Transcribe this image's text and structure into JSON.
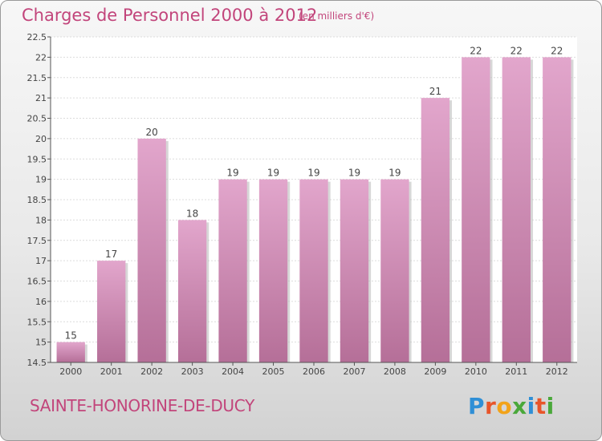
{
  "header": {
    "title": "Charges de Personnel 2000 à 2012",
    "subtitle": "(en milliers d'€)"
  },
  "footer": {
    "commune": "SAINTE-HONORINE-DE-DUCY",
    "logo": "Proxiti",
    "logo_letters": [
      {
        "ch": "P",
        "color": "#2f8fd6"
      },
      {
        "ch": "r",
        "color": "#e8552a"
      },
      {
        "ch": "o",
        "color": "#f2a31a"
      },
      {
        "ch": "x",
        "color": "#4aa83a"
      },
      {
        "ch": "i",
        "color": "#2f8fd6"
      },
      {
        "ch": "t",
        "color": "#e8552a"
      },
      {
        "ch": "i",
        "color": "#4aa83a"
      }
    ]
  },
  "chart_data": {
    "type": "bar",
    "title": "Charges de Personnel 2000 à 2012",
    "subtitle": "(en milliers d'€)",
    "categories": [
      "2000",
      "2001",
      "2002",
      "2003",
      "2004",
      "2005",
      "2006",
      "2007",
      "2008",
      "2009",
      "2010",
      "2011",
      "2012"
    ],
    "values": [
      15,
      17,
      20,
      18,
      19,
      19,
      19,
      19,
      19,
      21,
      22,
      22,
      22
    ],
    "data_labels": [
      "15",
      "17",
      "20",
      "18",
      "19",
      "19",
      "19",
      "19",
      "19",
      "21",
      "22",
      "22",
      "22"
    ],
    "ylim": [
      14.5,
      22.5
    ],
    "yticks": [
      "14.5",
      "15",
      "15.5",
      "16",
      "16.5",
      "17",
      "17.5",
      "18",
      "18.5",
      "19",
      "19.5",
      "20",
      "20.5",
      "21",
      "21.5",
      "22",
      "22.5"
    ],
    "grid": true,
    "colors": {
      "bar_top": "#e2a6cc",
      "bar_bottom": "#b56f98",
      "title": "#c2457b"
    }
  }
}
